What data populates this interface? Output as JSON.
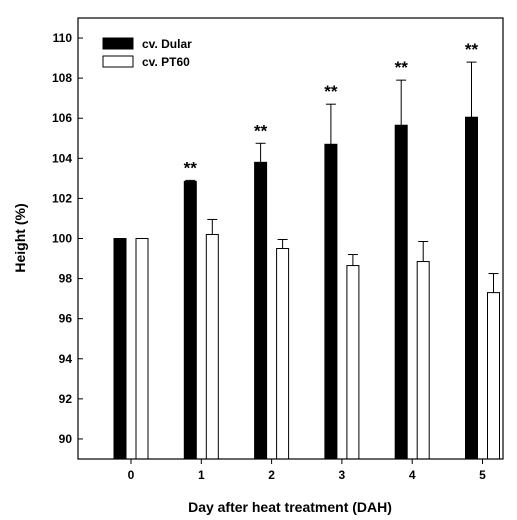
{
  "chart_data": {
    "type": "bar",
    "xlabel": "Day after heat treatment (DAH)",
    "ylabel": "Height (%)",
    "ylim": [
      89,
      111
    ],
    "yticks": [
      90,
      92,
      94,
      96,
      98,
      100,
      102,
      104,
      106,
      108,
      110
    ],
    "categories": [
      "0",
      "1",
      "2",
      "3",
      "4",
      "5"
    ],
    "legend_position": "top-left",
    "series": [
      {
        "name": "cv. Dular",
        "fill": "#000000",
        "values": [
          100.0,
          102.85,
          103.8,
          104.7,
          105.65,
          106.05
        ],
        "errors": [
          0.0,
          0.05,
          0.95,
          2.0,
          2.25,
          2.75
        ]
      },
      {
        "name": "cv. PT60",
        "fill": "#ffffff",
        "values": [
          100.0,
          100.2,
          99.5,
          98.65,
          98.85,
          97.3
        ],
        "errors": [
          0.0,
          0.75,
          0.45,
          0.55,
          1.0,
          0.95
        ]
      }
    ],
    "annotations": [
      "",
      "**",
      "**",
      "**",
      "**",
      "**"
    ]
  }
}
